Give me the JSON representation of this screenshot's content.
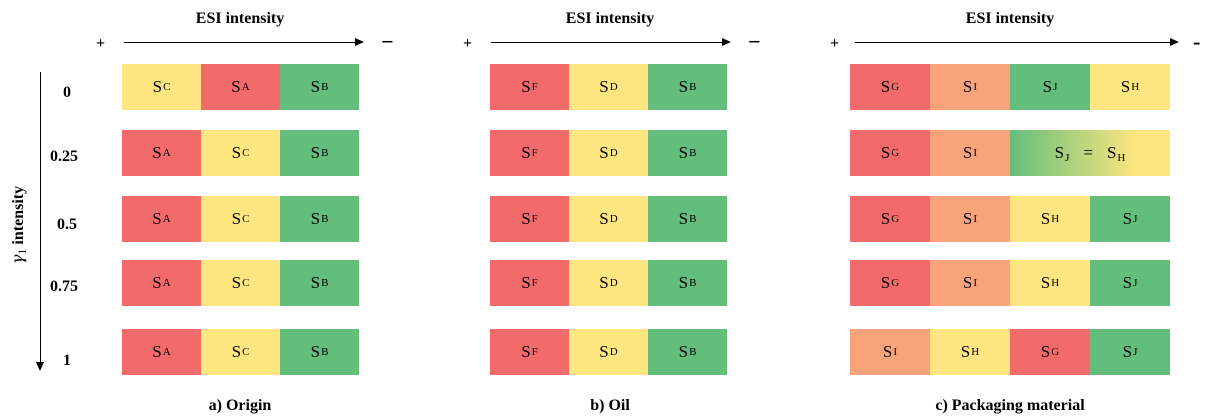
{
  "header_label": "ESI intensity",
  "plus_sign": "+",
  "minus_sign": "−",
  "minus_sign_c": "-",
  "y_axis": {
    "symbol": "γ",
    "subscript": "1",
    "label": "intensity",
    "rows": [
      "0",
      "0.25",
      "0.5",
      "0.75",
      "1"
    ]
  },
  "colors": {
    "red": "#f26a6a",
    "yellow": "#ffe680",
    "green": "#63be7b",
    "orange": "#f9a37a"
  },
  "panels": [
    {
      "title": "a) Origin",
      "rows": [
        [
          {
            "s": "C",
            "c": "yellow"
          },
          {
            "s": "A",
            "c": "red"
          },
          {
            "s": "B",
            "c": "green"
          }
        ],
        [
          {
            "s": "A",
            "c": "red"
          },
          {
            "s": "C",
            "c": "yellow"
          },
          {
            "s": "B",
            "c": "green"
          }
        ],
        [
          {
            "s": "A",
            "c": "red"
          },
          {
            "s": "C",
            "c": "yellow"
          },
          {
            "s": "B",
            "c": "green"
          }
        ],
        [
          {
            "s": "A",
            "c": "red"
          },
          {
            "s": "C",
            "c": "yellow"
          },
          {
            "s": "B",
            "c": "green"
          }
        ],
        [
          {
            "s": "A",
            "c": "red"
          },
          {
            "s": "C",
            "c": "yellow"
          },
          {
            "s": "B",
            "c": "green"
          }
        ]
      ]
    },
    {
      "title": "b) Oil",
      "rows": [
        [
          {
            "s": "F",
            "c": "red"
          },
          {
            "s": "D",
            "c": "yellow"
          },
          {
            "s": "B",
            "c": "green"
          }
        ],
        [
          {
            "s": "F",
            "c": "red"
          },
          {
            "s": "D",
            "c": "yellow"
          },
          {
            "s": "B",
            "c": "green"
          }
        ],
        [
          {
            "s": "F",
            "c": "red"
          },
          {
            "s": "D",
            "c": "yellow"
          },
          {
            "s": "B",
            "c": "green"
          }
        ],
        [
          {
            "s": "F",
            "c": "red"
          },
          {
            "s": "D",
            "c": "yellow"
          },
          {
            "s": "B",
            "c": "green"
          }
        ],
        [
          {
            "s": "F",
            "c": "red"
          },
          {
            "s": "D",
            "c": "yellow"
          },
          {
            "s": "B",
            "c": "green"
          }
        ]
      ]
    },
    {
      "title": "c) Packaging material",
      "rows": [
        [
          {
            "s": "G",
            "c": "red"
          },
          {
            "s": "I",
            "c": "orange"
          },
          {
            "s": "J",
            "c": "green"
          },
          {
            "s": "H",
            "c": "yellow"
          }
        ],
        [
          {
            "s": "G",
            "c": "red"
          },
          {
            "s": "I",
            "c": "orange"
          },
          {
            "tie": [
              "J",
              "H"
            ],
            "c": "green-yellow"
          }
        ],
        [
          {
            "s": "G",
            "c": "red"
          },
          {
            "s": "I",
            "c": "orange"
          },
          {
            "s": "H",
            "c": "yellow"
          },
          {
            "s": "J",
            "c": "green"
          }
        ],
        [
          {
            "s": "G",
            "c": "red"
          },
          {
            "s": "I",
            "c": "orange"
          },
          {
            "s": "H",
            "c": "yellow"
          },
          {
            "s": "J",
            "c": "green"
          }
        ],
        [
          {
            "s": "I",
            "c": "orange"
          },
          {
            "s": "H",
            "c": "yellow"
          },
          {
            "s": "G",
            "c": "red"
          },
          {
            "s": "J",
            "c": "green"
          }
        ]
      ]
    }
  ]
}
